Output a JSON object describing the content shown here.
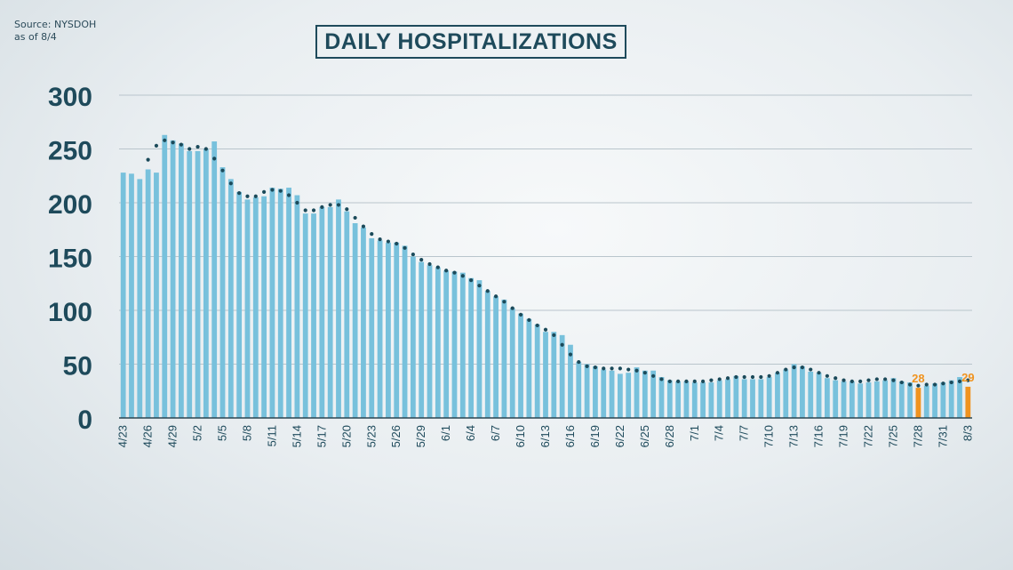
{
  "source": {
    "line1": "Source: NYSDOH",
    "line2": "as of 8/4"
  },
  "colors": {
    "bar": "#78c1dc",
    "highlight": "#f0931f",
    "trend": "#1b4a5a",
    "grid": "#b9c5cc",
    "text": "#1e4a5b"
  },
  "chart_data": {
    "type": "bar",
    "title": "DAILY HOSPITALIZATIONS",
    "xlabel": "",
    "ylabel": "",
    "ylim": [
      0,
      300
    ],
    "yticks": [
      "0",
      "50",
      "100",
      "150",
      "200",
      "250",
      "300"
    ],
    "grid": true,
    "legend": "none",
    "xtick_labels": [
      "4/23",
      "4/26",
      "4/29",
      "5/2",
      "5/5",
      "5/8",
      "5/11",
      "5/14",
      "5/17",
      "5/20",
      "5/23",
      "5/26",
      "5/29",
      "6/1",
      "6/4",
      "6/7",
      "6/10",
      "6/13",
      "6/16",
      "6/19",
      "6/22",
      "6/25",
      "6/28",
      "7/1",
      "7/4",
      "7/7",
      "7/10",
      "7/13",
      "7/16",
      "7/19",
      "7/22",
      "7/25",
      "7/28",
      "7/31",
      "8/3"
    ],
    "categories": [
      "4/23",
      "4/24",
      "4/25",
      "4/26",
      "4/27",
      "4/28",
      "4/29",
      "4/30",
      "5/1",
      "5/2",
      "5/3",
      "5/4",
      "5/5",
      "5/6",
      "5/7",
      "5/8",
      "5/9",
      "5/10",
      "5/11",
      "5/12",
      "5/13",
      "5/14",
      "5/15",
      "5/16",
      "5/17",
      "5/18",
      "5/19",
      "5/20",
      "5/21",
      "5/22",
      "5/23",
      "5/24",
      "5/25",
      "5/26",
      "5/27",
      "5/28",
      "5/29",
      "5/30",
      "5/31",
      "6/1",
      "6/2",
      "6/3",
      "6/4",
      "6/5",
      "6/6",
      "6/7",
      "6/8",
      "6/9",
      "6/10",
      "6/11",
      "6/12",
      "6/13",
      "6/14",
      "6/15",
      "6/16",
      "6/17",
      "6/18",
      "6/19",
      "6/20",
      "6/21",
      "6/22",
      "6/23",
      "6/24",
      "6/25",
      "6/26",
      "6/27",
      "6/28",
      "6/29",
      "6/30",
      "7/1",
      "7/2",
      "7/3",
      "7/4",
      "7/5",
      "7/6",
      "7/7",
      "7/8",
      "7/9",
      "7/10",
      "7/11",
      "7/12",
      "7/13",
      "7/14",
      "7/15",
      "7/16",
      "7/17",
      "7/18",
      "7/19",
      "7/20",
      "7/21",
      "7/22",
      "7/23",
      "7/24",
      "7/25",
      "7/26",
      "7/27",
      "7/28",
      "7/29",
      "7/30",
      "7/31",
      "8/1",
      "8/2",
      "8/3"
    ],
    "values": [
      228,
      227,
      222,
      231,
      228,
      263,
      258,
      255,
      248,
      248,
      250,
      257,
      233,
      222,
      210,
      203,
      205,
      206,
      214,
      213,
      214,
      207,
      190,
      190,
      196,
      196,
      203,
      192,
      181,
      177,
      167,
      165,
      163,
      163,
      160,
      150,
      145,
      142,
      140,
      137,
      136,
      135,
      130,
      128,
      118,
      113,
      110,
      102,
      97,
      92,
      87,
      80,
      80,
      77,
      68,
      52,
      50,
      48,
      45,
      44,
      41,
      42,
      47,
      44,
      44,
      38,
      35,
      34,
      34,
      33,
      33,
      33,
      35,
      36,
      39,
      36,
      36,
      36,
      38,
      42,
      45,
      50,
      48,
      43,
      42,
      37,
      35,
      34,
      34,
      32,
      33,
      34,
      35,
      37,
      34,
      33,
      28,
      30,
      32,
      33,
      35,
      38,
      29
    ],
    "highlight": [
      {
        "index": 96,
        "label": "28"
      },
      {
        "index": 102,
        "label": "29"
      }
    ],
    "trend": [
      225,
      226,
      229,
      240,
      253,
      258,
      256,
      254,
      250,
      252,
      250,
      241,
      230,
      218,
      209,
      206,
      206,
      210,
      212,
      211,
      207,
      200,
      193,
      193,
      196,
      198,
      198,
      194,
      186,
      178,
      171,
      166,
      164,
      162,
      158,
      152,
      147,
      143,
      140,
      137,
      135,
      132,
      128,
      123,
      118,
      113,
      108,
      102,
      96,
      91,
      86,
      82,
      77,
      68,
      59,
      52,
      48,
      47,
      46,
      46,
      46,
      45,
      44,
      42,
      39,
      36,
      34,
      34,
      34,
      34,
      34,
      35,
      36,
      37,
      38,
      38,
      38,
      38,
      39,
      42,
      45,
      47,
      47,
      45,
      42,
      39,
      37,
      35,
      34,
      34,
      35,
      36,
      36,
      35,
      33,
      31,
      30,
      31,
      31,
      32,
      33,
      34,
      35
    ]
  }
}
